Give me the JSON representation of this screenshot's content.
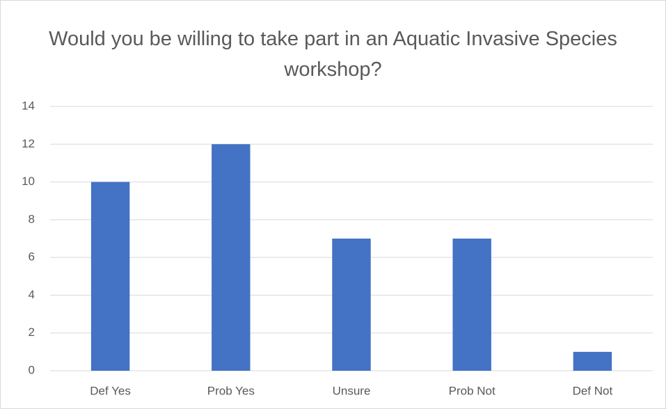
{
  "chart_data": {
    "type": "bar",
    "title": "Would you be willing to take part in an Aquatic Invasive Species workshop?",
    "categories": [
      "Def Yes",
      "Prob Yes",
      "Unsure",
      "Prob Not",
      "Def Not"
    ],
    "values": [
      10,
      12,
      7,
      7,
      1
    ],
    "color": "#4472c4",
    "ylim": [
      0,
      14
    ],
    "yticks": [
      0,
      2,
      4,
      6,
      8,
      10,
      12,
      14
    ],
    "grid": true
  }
}
